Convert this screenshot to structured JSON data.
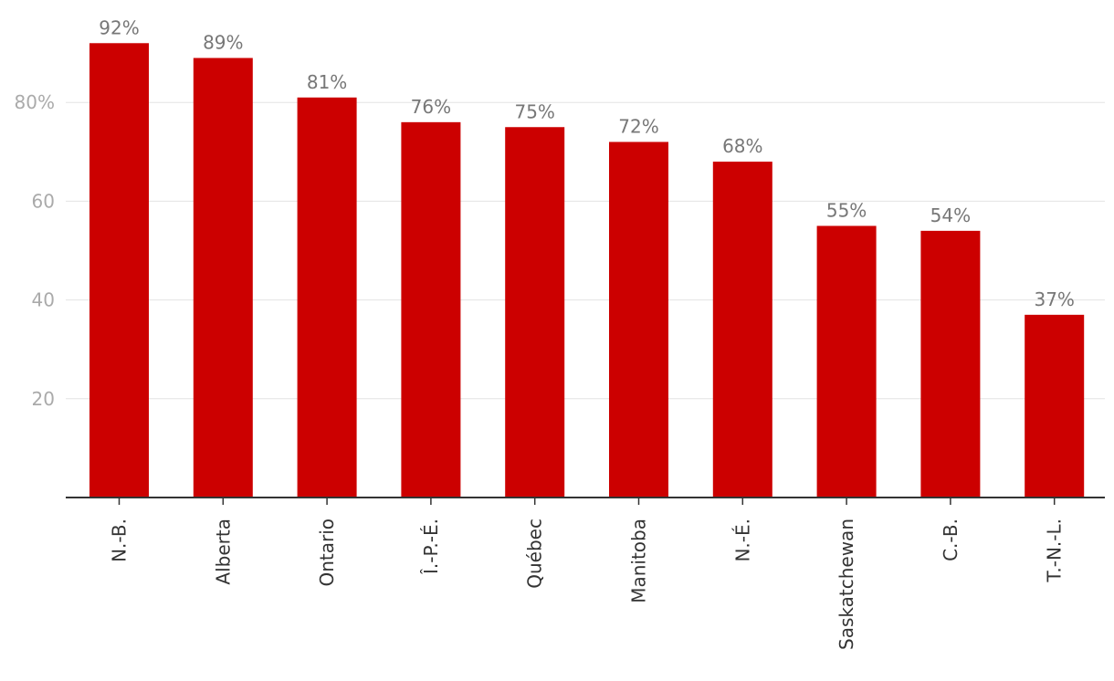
{
  "chart_data": {
    "type": "bar",
    "categories": [
      "N.-B.",
      "Alberta",
      "Ontario",
      "Î.-P.-É.",
      "Québec",
      "Manitoba",
      "N.-É.",
      "Saskatchewan",
      "C.-B.",
      "T.-N.-L."
    ],
    "values": [
      92,
      89,
      81,
      76,
      75,
      72,
      68,
      55,
      54,
      37
    ],
    "value_labels": [
      "92%",
      "89%",
      "81%",
      "76%",
      "75%",
      "72%",
      "68%",
      "55%",
      "54%",
      "37%"
    ],
    "y_ticks": [
      20,
      40,
      60,
      80
    ],
    "y_tick_labels": [
      "20",
      "40",
      "60",
      "80%"
    ],
    "ylim": [
      0,
      100
    ],
    "grid": true,
    "legend": "none",
    "title": "",
    "xlabel": "",
    "ylabel": ""
  },
  "colors": {
    "bar": "#cc0000",
    "grid": "#e3e3e3",
    "axis": "#333333"
  }
}
